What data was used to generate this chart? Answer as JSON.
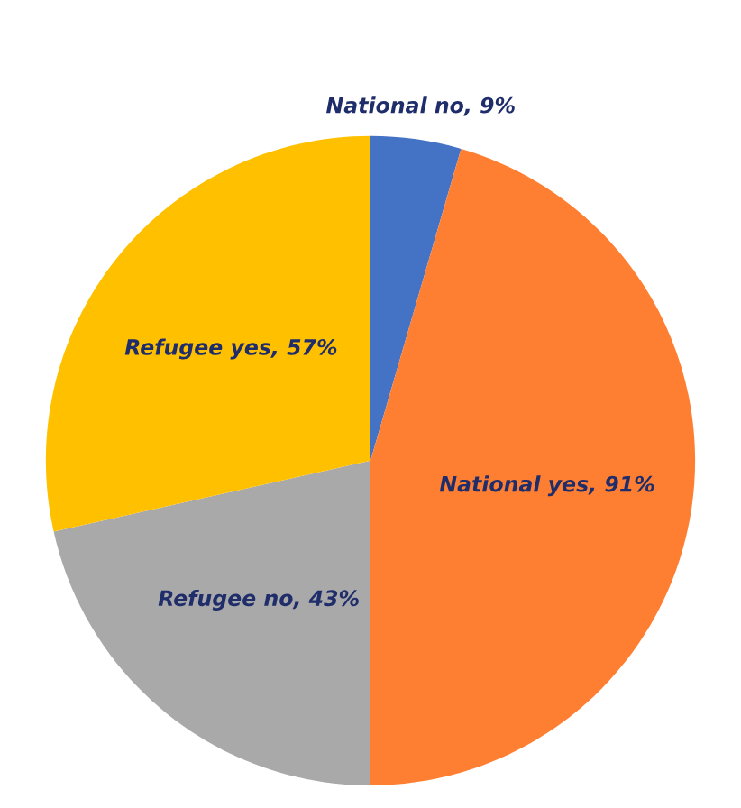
{
  "chart_data": {
    "type": "pie",
    "categories": [
      "National no",
      "National yes",
      "Refugee no",
      "Refugee yes"
    ],
    "values": [
      9,
      91,
      43,
      57
    ],
    "value_labels": [
      "9%",
      "91%",
      "43%",
      "57%"
    ],
    "colors": [
      "#4472c4",
      "#ff7f32",
      "#a9a9a9",
      "#ffc000"
    ]
  }
}
